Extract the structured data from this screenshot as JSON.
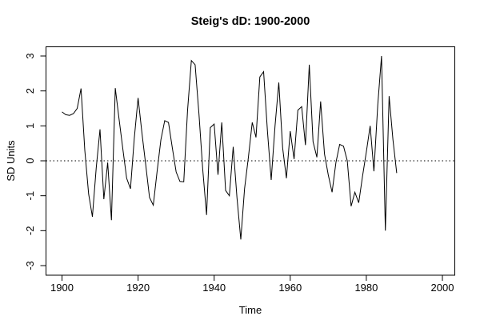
{
  "chart_data": {
    "type": "line",
    "title": "Steig's dD: 1900-2000",
    "xlabel": "Time",
    "ylabel": "SD Units",
    "xlim": [
      1896,
      2004
    ],
    "ylim": [
      -3.24,
      3.24
    ],
    "x_ticks": [
      1900,
      1920,
      1940,
      1960,
      1980,
      2000
    ],
    "y_ticks": [
      -3,
      -2,
      -1,
      0,
      1,
      2,
      3
    ],
    "grid": false,
    "reference_line_y": 0,
    "reference_line_style": "dotted",
    "line_color": "#000000",
    "background_color": "#ffffff",
    "x": [
      1900,
      1901,
      1902,
      1903,
      1904,
      1905,
      1906,
      1907,
      1908,
      1909,
      1910,
      1911,
      1912,
      1913,
      1914,
      1915,
      1916,
      1917,
      1918,
      1919,
      1920,
      1921,
      1922,
      1923,
      1924,
      1925,
      1926,
      1927,
      1928,
      1929,
      1930,
      1931,
      1932,
      1933,
      1934,
      1935,
      1936,
      1937,
      1938,
      1939,
      1940,
      1941,
      1942,
      1943,
      1944,
      1945,
      1946,
      1947,
      1948,
      1949,
      1950,
      1951,
      1952,
      1953,
      1954,
      1955,
      1956,
      1957,
      1958,
      1959,
      1960,
      1961,
      1962,
      1963,
      1964,
      1965,
      1966,
      1967,
      1968,
      1969,
      1970,
      1971,
      1972,
      1973,
      1974,
      1975,
      1976,
      1977,
      1978,
      1979,
      1980,
      1981,
      1982,
      1983,
      1984,
      1985,
      1986,
      1987,
      1988
    ],
    "values": [
      1.4,
      1.32,
      1.3,
      1.35,
      1.5,
      2.07,
      0.3,
      -0.95,
      -1.6,
      -0.2,
      0.9,
      -1.1,
      -0.05,
      -1.7,
      2.08,
      1.2,
      0.33,
      -0.5,
      -0.8,
      0.63,
      1.8,
      0.8,
      -0.1,
      -1.05,
      -1.27,
      -0.3,
      0.6,
      1.15,
      1.1,
      0.37,
      -0.32,
      -0.59,
      -0.6,
      1.43,
      2.87,
      2.75,
      1.34,
      -0.24,
      -1.55,
      0.95,
      1.05,
      -0.4,
      1.1,
      -0.85,
      -1.0,
      0.4,
      -1.05,
      -2.25,
      -0.8,
      0.1,
      1.1,
      0.67,
      2.4,
      2.55,
      0.85,
      -0.55,
      1.0,
      2.24,
      0.37,
      -0.5,
      0.85,
      0.05,
      1.45,
      1.55,
      0.45,
      2.75,
      0.55,
      0.1,
      1.7,
      0.2,
      -0.4,
      -0.9,
      -0.05,
      0.47,
      0.42,
      0.0,
      -1.3,
      -0.9,
      -1.2,
      -0.45,
      0.25,
      1.0,
      -0.3,
      1.6,
      3.0,
      -2.0,
      1.85,
      0.6,
      -0.35
    ]
  }
}
